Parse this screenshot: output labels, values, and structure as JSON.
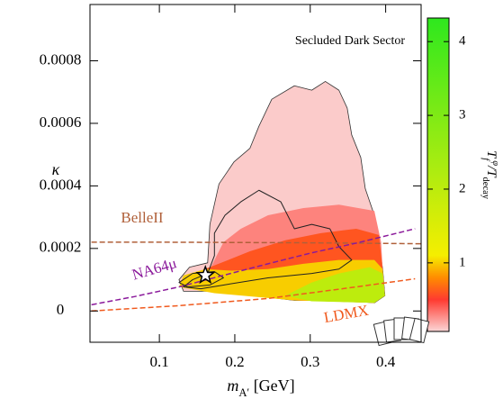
{
  "chart_data": {
    "type": "contour",
    "annotation": "Secluded Dark Sector",
    "xlabel": [
      {
        "text": "m",
        "style": "italic"
      },
      {
        "text": "A′",
        "shift": "sub"
      },
      {
        "text": " [GeV]"
      }
    ],
    "ylabel": [
      {
        "text": "κ",
        "style": "italic"
      }
    ],
    "colorbar_label": [
      {
        "text": "T",
        "style": "italic"
      },
      {
        "text": "f",
        "shift": "sub",
        "style": "italic"
      },
      {
        "text": "φ",
        "shift": "super",
        "style": "italic"
      },
      {
        "text": "/T",
        "style": "italic"
      },
      {
        "text": "decay",
        "shift": "sub"
      }
    ],
    "xlim": [
      0.008,
      0.447
    ],
    "ylim": [
      -0.0001,
      0.00098
    ],
    "xticks": [
      0.1,
      0.2,
      0.3,
      0.4
    ],
    "yticks": [
      0,
      0.0002,
      0.0004,
      0.0006,
      0.0008
    ],
    "clim": [
      0.07,
      4.32
    ],
    "cticks": [
      1,
      2,
      3,
      4
    ],
    "colormap": [
      {
        "value": 0.07,
        "color": "#fbd6d6"
      },
      {
        "value": 0.5,
        "color": "#ff3a30"
      },
      {
        "value": 0.8,
        "color": "#ff8c00"
      },
      {
        "value": 1.1,
        "color": "#f5ee00"
      },
      {
        "value": 2.2,
        "color": "#b0ec10"
      },
      {
        "value": 4.32,
        "color": "#2ee81e"
      }
    ],
    "contours": [
      {
        "level": 0.1,
        "x": [
          0.132,
          0.126,
          0.14,
          0.164,
          0.167,
          0.179,
          0.199,
          0.22,
          0.232,
          0.249,
          0.279,
          0.302,
          0.32,
          0.338,
          0.349,
          0.355,
          0.367,
          0.373,
          0.385,
          0.391,
          0.396,
          0.399,
          0.385,
          0.338,
          0.279,
          0.208,
          0.173
        ],
        "y": [
          6.3e-05,
          0.0001,
          0.00014,
          0.000154,
          0.000277,
          0.000406,
          0.000477,
          0.00052,
          0.000591,
          0.000677,
          0.00072,
          0.000706,
          0.000734,
          0.000706,
          0.000649,
          0.000563,
          0.000491,
          0.000391,
          0.000306,
          0.00022,
          0.000134,
          4.9e-05,
          2.6e-05,
          3.4e-05,
          3.4e-05,
          5.4e-05,
          6.3e-05
        ]
      },
      {
        "level": 0.3,
        "x": [
          0.138,
          0.167,
          0.185,
          0.208,
          0.244,
          0.291,
          0.338,
          0.385,
          0.394,
          0.396,
          0.399,
          0.385,
          0.279,
          0.173
        ],
        "y": [
          8.3e-05,
          0.000134,
          0.00022,
          0.000263,
          0.000306,
          0.000329,
          0.00034,
          0.00032,
          0.00022,
          0.000134,
          4.9e-05,
          2.6e-05,
          3.4e-05,
          6.3e-05
        ]
      },
      {
        "level": 0.6,
        "x": [
          0.132,
          0.155,
          0.185,
          0.22,
          0.267,
          0.314,
          0.361,
          0.391,
          0.396,
          0.399,
          0.385,
          0.279,
          0.173
        ],
        "y": [
          7.7e-05,
          0.000129,
          0.000157,
          0.000191,
          0.000226,
          0.000249,
          0.000263,
          0.000243,
          0.000134,
          4.9e-05,
          2.6e-05,
          3.4e-05,
          6.3e-05
        ]
      },
      {
        "level": 1,
        "x": [
          0.126,
          0.132,
          0.161,
          0.196,
          0.244,
          0.291,
          0.338,
          0.385,
          0.396,
          0.399,
          0.385,
          0.279,
          0.173
        ],
        "y": [
          7.7e-05,
          0.000114,
          0.000134,
          0.000129,
          0.000134,
          0.000151,
          0.000163,
          0.000163,
          0.000134,
          4.9e-05,
          2.6e-05,
          3.4e-05,
          5.7e-05
        ]
      },
      {
        "level": 2,
        "x": [
          0.267,
          0.302,
          0.338,
          0.379,
          0.396,
          0.399,
          0.385,
          0.302
        ],
        "y": [
          4.9e-05,
          9.1e-05,
          0.00012,
          0.00014,
          0.00012,
          4.9e-05,
          2.6e-05,
          3.1e-05
        ]
      }
    ],
    "contour_lines": [
      {
        "x": [
          0.132,
          0.144,
          0.164,
          0.173,
          0.173,
          0.187,
          0.208,
          0.232,
          0.261,
          0.279,
          0.302,
          0.326,
          0.338,
          0.355,
          0.338,
          0.302,
          0.244,
          0.185,
          0.155
        ],
        "y": [
          7.7e-05,
          0.0001,
          0.00012,
          0.000177,
          0.000249,
          0.000306,
          0.000349,
          0.000386,
          0.000349,
          0.000263,
          0.000277,
          0.000263,
          0.000206,
          0.000163,
          0.000134,
          0.00012,
          0.000106,
          8.3e-05,
          7.1e-05
        ]
      },
      {
        "x": [
          0.126,
          0.144,
          0.173,
          0.185,
          0.167,
          0.138
        ],
        "y": [
          9.1e-05,
          0.00012,
          0.000126,
          0.000106,
          8.3e-05,
          7.7e-05
        ]
      }
    ],
    "series": [
      {
        "name": "BelleII",
        "color": "#b0603a",
        "x": [
          0.01,
          0.1,
          0.2,
          0.3,
          0.4,
          0.447
        ],
        "values": [
          0.00022,
          0.00022,
          0.000219,
          0.000218,
          0.000216,
          0.000215
        ]
      },
      {
        "name": "NA64μ",
        "color": "#8b1a9b",
        "x": [
          0.01,
          0.067,
          0.126,
          0.185,
          0.244,
          0.302,
          0.361,
          0.439
        ],
        "values": [
          2e-05,
          4.6e-05,
          7.7e-05,
          0.000114,
          0.000151,
          0.000186,
          0.000217,
          0.000263
        ]
      },
      {
        "name": "LDMX",
        "color": "#f05a1e",
        "x": [
          0.01,
          0.126,
          0.244,
          0.361,
          0.439
        ],
        "values": [
          0,
          1.7e-05,
          4e-05,
          7.7e-05,
          0.000103
        ]
      }
    ],
    "marker": {
      "x": 0.161,
      "y": 0.000114
    }
  }
}
